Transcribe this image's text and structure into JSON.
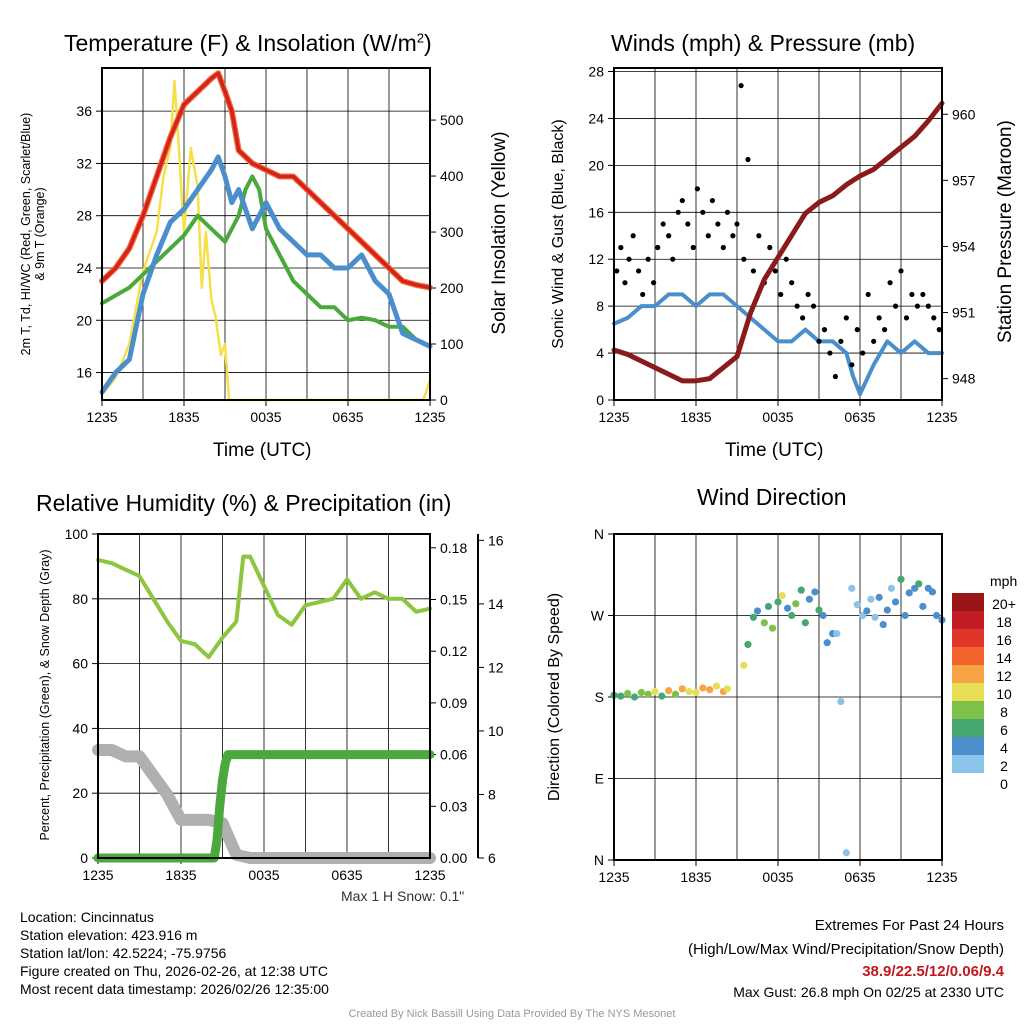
{
  "footer": {
    "location": "Location: Cincinnatus",
    "elevation": "Station elevation: 423.916 m",
    "latlon": "Station lat/lon: 42.5224; -75.9756",
    "created": "Figure created on Thu, 2026-02-26, at 12:38 UTC",
    "recent": "Most recent data timestamp: 2026/02/26 12:35:00",
    "extremes_title": "Extremes For Past 24 Hours",
    "extremes_sub": "(High/Low/Max Wind/Precipitation/Snow Depth)",
    "extremes_values": "38.9/22.5/12/0.06/9.4",
    "max_gust": "Max Gust: 26.8 mph On 02/25 at 2330 UTC",
    "credit": "Created By Nick Bassill Using Data Provided By The NYS Mesonet",
    "max_snow": "Max 1 H Snow: 0.1\""
  },
  "colors": {
    "temp": "#d42020",
    "dew": "#4aa83c",
    "wc": "#4a8fcc",
    "solar": "#f5e04a",
    "wind": "#4a8fcc",
    "gust": "#000000",
    "pressure": "#8b1a1a",
    "rh": "#8cc63f",
    "precip": "#4aa83c",
    "snow": "#b0b0b0",
    "extreme": "#c0181e"
  },
  "chart_data": [
    {
      "type": "line",
      "title": "Temperature (F) & Insolation (W/m²)",
      "title_main": "Temperature (F) & Insolation (W/m",
      "title_sup": "2",
      "title_end": ")",
      "xlabel": "Time (UTC)",
      "ylabel": "2m T, Td, HI/WC (Red, Green, Scarlet/Blue)",
      "ylabel2": "& 9m T (Orange)",
      "y2label": "Solar Insolation (Yellow)",
      "xticks": [
        "1235",
        "1835",
        "0035",
        "0635",
        "1235"
      ],
      "yticks": [
        "16",
        "20",
        "24",
        "28",
        "32",
        "36"
      ],
      "y2ticks": [
        "0",
        "100",
        "200",
        "300",
        "400",
        "500"
      ],
      "ylim": [
        13.9,
        39.3
      ],
      "y2lim": [
        0,
        593
      ],
      "series": [
        {
          "name": "2m T",
          "axis": "left",
          "color": "#d42020",
          "x": [
            0,
            1,
            2,
            3,
            4,
            5,
            6,
            7,
            8,
            8.5,
            9,
            9.5,
            10,
            11,
            12,
            13,
            14,
            15,
            16,
            17,
            18,
            19,
            20,
            21,
            22,
            23,
            24
          ],
          "y": [
            23,
            24,
            25.5,
            28,
            31,
            34,
            36.5,
            37.5,
            38.5,
            38.9,
            37.5,
            36,
            33,
            32,
            31.5,
            31,
            31,
            30,
            29,
            28,
            27,
            26,
            25,
            24,
            23,
            22.7,
            22.5
          ]
        },
        {
          "name": "Td",
          "axis": "left",
          "color": "#4aa83c",
          "x": [
            0,
            2,
            4,
            6,
            7,
            8,
            9,
            10,
            10.5,
            11,
            11.5,
            12,
            13,
            14,
            15,
            16,
            17,
            18,
            19,
            20,
            21,
            22,
            23,
            24
          ],
          "y": [
            21.3,
            22.5,
            24.5,
            26.5,
            28,
            27,
            26,
            28,
            30,
            31,
            30,
            27,
            25,
            23,
            22,
            21,
            21,
            20,
            20.2,
            20,
            19.5,
            19.5,
            18.5,
            18
          ]
        },
        {
          "name": "WC",
          "axis": "left",
          "color": "#4a8fcc",
          "x": [
            0,
            1,
            2,
            3,
            4,
            5,
            6,
            7,
            8,
            8.5,
            9,
            9.5,
            10,
            11,
            12,
            13,
            14,
            15,
            16,
            17,
            18,
            19,
            20,
            21,
            22,
            23,
            24
          ],
          "y": [
            14.5,
            16,
            17,
            22,
            25,
            27.5,
            28.5,
            30,
            31.5,
            32.5,
            31,
            29,
            30,
            27,
            29,
            27,
            26,
            25,
            25,
            24,
            24,
            25,
            23,
            22,
            19,
            18.5,
            18
          ]
        },
        {
          "name": "Solar",
          "axis": "right",
          "color": "#f5e04a",
          "x": [
            0,
            1,
            2,
            3,
            4,
            4.5,
            5,
            5.3,
            5.5,
            6,
            6.5,
            7,
            7.3,
            7.6,
            8,
            8.3,
            8.7,
            9,
            9.3,
            23.5,
            24
          ],
          "y": [
            10,
            40,
            100,
            230,
            300,
            400,
            450,
            570,
            500,
            300,
            450,
            380,
            200,
            300,
            180,
            150,
            80,
            100,
            0,
            0,
            35
          ]
        }
      ]
    },
    {
      "type": "line",
      "title": "Winds (mph) & Pressure (mb)",
      "xlabel": "Time (UTC)",
      "ylabel": "Sonic Wind & Gust (Blue, Black)",
      "y2label": "Station Pressure (Maroon)",
      "xticks": [
        "1235",
        "1835",
        "0035",
        "0635",
        "1235"
      ],
      "yticks": [
        "0",
        "4",
        "8",
        "12",
        "16",
        "20",
        "24",
        "28"
      ],
      "y2ticks": [
        "948",
        "951",
        "954",
        "957",
        "960"
      ],
      "ylim": [
        0,
        28.3
      ],
      "y2lim": [
        947.03,
        962.1
      ],
      "series": [
        {
          "name": "Sonic Wind",
          "axis": "left",
          "color": "#4a8fcc",
          "x": [
            0,
            1,
            2,
            3,
            4,
            5,
            6,
            7,
            8,
            9,
            10,
            11,
            12,
            13,
            14,
            15,
            16,
            17,
            17.5,
            18,
            19,
            20,
            21,
            22,
            23,
            24
          ],
          "y": [
            6.5,
            7,
            8,
            8,
            9,
            9,
            8,
            9,
            9,
            8,
            7,
            6,
            5,
            5,
            6,
            5,
            5,
            4,
            2,
            0.5,
            3,
            5,
            4,
            5,
            4,
            4
          ]
        },
        {
          "name": "Pressure",
          "axis": "right",
          "color": "#8b1a1a",
          "x": [
            0,
            1,
            2,
            3,
            4,
            5,
            6,
            7,
            8,
            9,
            9.5,
            10,
            11,
            12,
            13,
            14,
            15,
            16,
            17,
            18,
            19,
            20,
            21,
            22,
            23,
            24
          ],
          "y": [
            949.3,
            949.1,
            948.8,
            948.5,
            948.2,
            947.9,
            947.9,
            948,
            948.5,
            949,
            950,
            951,
            952.5,
            953.5,
            954.5,
            955.5,
            956,
            956.3,
            956.8,
            957.2,
            957.5,
            958,
            958.5,
            959,
            959.7,
            960.5
          ]
        },
        {
          "name": "Gust",
          "axis": "left",
          "color": "#000000",
          "kind": "scatter",
          "x": [
            0.2,
            0.5,
            0.8,
            1.1,
            1.4,
            1.8,
            2.1,
            2.5,
            2.9,
            3.2,
            3.6,
            4,
            4.3,
            4.7,
            5,
            5.4,
            5.8,
            6.1,
            6.5,
            6.9,
            7.2,
            7.6,
            8,
            8.3,
            8.7,
            9,
            9.3,
            9.5,
            9.8,
            10.2,
            10.6,
            11,
            11.4,
            11.8,
            12.2,
            12.6,
            13,
            13.4,
            13.8,
            14.2,
            14.6,
            15,
            15.4,
            15.8,
            16.2,
            16.6,
            17,
            17.4,
            17.8,
            18.2,
            18.6,
            19,
            19.4,
            19.8,
            20.2,
            20.6,
            21,
            21.4,
            21.8,
            22.2,
            22.6,
            23,
            23.4,
            23.8
          ],
          "y": [
            11,
            13,
            10,
            12,
            14,
            11,
            9,
            12,
            10,
            13,
            15,
            14,
            12,
            16,
            17,
            15,
            13,
            18,
            16,
            14,
            17,
            15,
            13,
            16,
            14,
            15,
            26.8,
            12,
            20.5,
            11,
            14,
            10,
            13,
            11,
            9,
            12,
            10,
            8,
            7,
            9,
            8,
            5,
            6,
            4,
            2,
            5,
            7,
            3,
            6,
            4,
            9,
            5,
            7,
            6,
            10,
            8,
            11,
            7,
            9,
            8,
            9,
            8,
            7,
            6
          ]
        }
      ]
    },
    {
      "type": "line",
      "title": "Relative Humidity (%) & Precipitation (in)",
      "ylabel": "Percent, Precipitation (Green), & Snow Depth (Gray)",
      "xticks": [
        "1235",
        "1835",
        "0035",
        "0635",
        "1235"
      ],
      "yticks": [
        "0",
        "20",
        "40",
        "60",
        "80",
        "100"
      ],
      "y2ticks": [
        "0.00",
        "0.03",
        "0.06",
        "0.09",
        "0.12",
        "0.15",
        "0.18"
      ],
      "y3ticks": [
        "6",
        "8",
        "10",
        "12",
        "14",
        "16"
      ],
      "ylim": [
        0,
        100
      ],
      "y2lim": [
        0,
        0.188
      ],
      "y3lim": [
        6,
        16.2
      ],
      "series": [
        {
          "name": "RH",
          "axis": "left",
          "color": "#8cc63f",
          "x": [
            0,
            1,
            2,
            3,
            4,
            5,
            6,
            7,
            8,
            9,
            10,
            10.5,
            11,
            12,
            13,
            14,
            15,
            16,
            17,
            18,
            19,
            20,
            21,
            22,
            23,
            24
          ],
          "y": [
            92,
            91,
            89,
            87,
            80,
            73,
            67,
            66,
            62,
            68,
            73,
            93,
            93,
            84,
            75,
            72,
            78,
            79,
            80,
            86,
            80,
            82,
            80,
            80,
            76,
            77
          ]
        },
        {
          "name": "Precipitation",
          "axis": "right",
          "color": "#4aa83c",
          "x": [
            0,
            8.4,
            8.6,
            8.8,
            9,
            9.2,
            9.4,
            24
          ],
          "y": [
            0,
            0,
            0.01,
            0.03,
            0.045,
            0.055,
            0.06,
            0.06
          ]
        },
        {
          "name": "Snow Depth",
          "axis": "right2",
          "color": "#b0b0b0",
          "x": [
            0,
            1,
            2,
            3,
            4,
            5,
            6,
            7,
            8,
            9,
            10,
            11,
            12,
            24
          ],
          "y": [
            9.4,
            9.4,
            9.2,
            9.2,
            8.6,
            8,
            7.2,
            7.2,
            7.2,
            7.1,
            6.1,
            6,
            6,
            6
          ]
        }
      ]
    },
    {
      "type": "scatter",
      "title": "Wind Direction",
      "ylabel": "Direction (Colored By Speed)",
      "xticks": [
        "1235",
        "1835",
        "0035",
        "0635",
        "1235"
      ],
      "yticks": [
        "N",
        "E",
        "S",
        "W",
        "N"
      ],
      "ylim": [
        0,
        360
      ],
      "legend_title": "mph",
      "legend_labels": [
        "20+",
        "18",
        "16",
        "14",
        "12",
        "10",
        "8",
        "6",
        "4",
        "2",
        "0"
      ],
      "legend_colors": [
        "#9a1518",
        "#c21d24",
        "#e03528",
        "#f2642b",
        "#f7a544",
        "#e6df55",
        "#7bc14a",
        "#46a870",
        "#4d8fcc",
        "#8cc3ea",
        "#c8e6f8"
      ],
      "points": {
        "x": [
          0,
          0.5,
          1,
          1.5,
          2,
          2.5,
          3,
          3.5,
          4,
          4.5,
          5,
          5.5,
          6,
          6.5,
          7,
          7.5,
          8,
          8.3,
          9.5,
          9.8,
          10.2,
          10.5,
          11,
          11.3,
          11.6,
          12,
          12.3,
          12.7,
          13,
          13.3,
          13.7,
          14,
          14.3,
          14.7,
          15,
          15.3,
          15.6,
          16,
          16.3,
          16.6,
          17,
          17.4,
          17.8,
          18.2,
          18.5,
          18.8,
          19.1,
          19.4,
          19.7,
          20,
          20.3,
          20.6,
          21,
          21.3,
          21.6,
          22,
          22.3,
          22.6,
          23,
          23.3,
          23.6,
          24
        ],
        "y": [
          182,
          181,
          184,
          180,
          185,
          183,
          186,
          181,
          187,
          183,
          189,
          186,
          185,
          190,
          188,
          192,
          186,
          189,
          215,
          238,
          268,
          275,
          262,
          280,
          256,
          285,
          292,
          278,
          270,
          283,
          298,
          262,
          288,
          296,
          276,
          270,
          240,
          250,
          250,
          175,
          8,
          300,
          282,
          270,
          275,
          288,
          268,
          290,
          260,
          276,
          300,
          285,
          310,
          270,
          295,
          300,
          305,
          280,
          300,
          296,
          270,
          265
        ],
        "speed": [
          5,
          6,
          7,
          6,
          8,
          7,
          9,
          6,
          11,
          8,
          12,
          10,
          9,
          11,
          12,
          10,
          11,
          10,
          9,
          5,
          6,
          4,
          8,
          5,
          7,
          6,
          9,
          4,
          5,
          7,
          6,
          5,
          3,
          4,
          6,
          4,
          3,
          3,
          2,
          2,
          1,
          1,
          2,
          2,
          3,
          2,
          2,
          4,
          3,
          4,
          2,
          3,
          5,
          4,
          3,
          4,
          5,
          4,
          3,
          4,
          4,
          3
        ]
      }
    }
  ]
}
